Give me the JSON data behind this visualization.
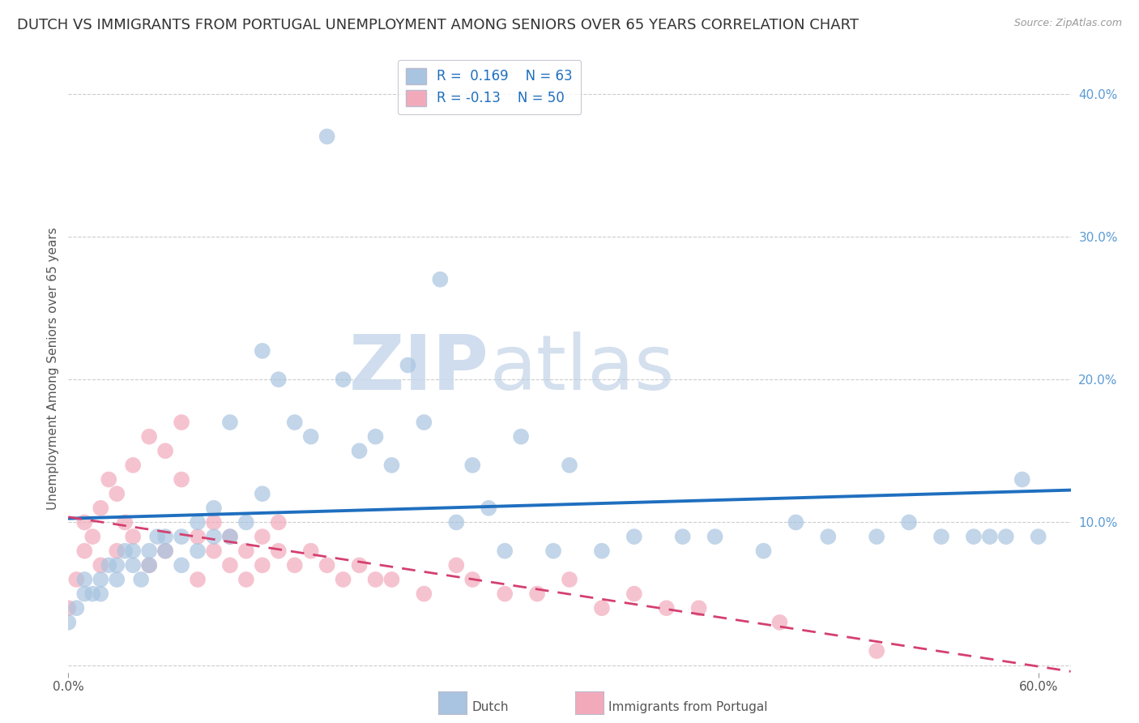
{
  "title": "DUTCH VS IMMIGRANTS FROM PORTUGAL UNEMPLOYMENT AMONG SENIORS OVER 65 YEARS CORRELATION CHART",
  "source": "Source: ZipAtlas.com",
  "ylabel": "Unemployment Among Seniors over 65 years",
  "xlim": [
    0.0,
    0.62
  ],
  "ylim": [
    -0.005,
    0.42
  ],
  "y_ticks_right": [
    0.0,
    0.1,
    0.2,
    0.3,
    0.4
  ],
  "dutch_R": 0.169,
  "dutch_N": 63,
  "portugal_R": -0.13,
  "portugal_N": 50,
  "dutch_color": "#a8c4e0",
  "dutch_line_color": "#1f6fbf",
  "portugal_color": "#f2aabb",
  "portugal_line_color": "#d44070",
  "dutch_scatter_x": [
    0.0,
    0.005,
    0.01,
    0.01,
    0.015,
    0.02,
    0.02,
    0.025,
    0.03,
    0.03,
    0.035,
    0.04,
    0.04,
    0.045,
    0.05,
    0.05,
    0.055,
    0.06,
    0.06,
    0.07,
    0.07,
    0.08,
    0.08,
    0.09,
    0.09,
    0.1,
    0.1,
    0.11,
    0.12,
    0.12,
    0.13,
    0.14,
    0.15,
    0.16,
    0.17,
    0.18,
    0.19,
    0.2,
    0.21,
    0.22,
    0.23,
    0.24,
    0.25,
    0.26,
    0.27,
    0.28,
    0.3,
    0.31,
    0.33,
    0.35,
    0.38,
    0.4,
    0.43,
    0.45,
    0.47,
    0.5,
    0.52,
    0.54,
    0.56,
    0.57,
    0.58,
    0.59,
    0.6
  ],
  "dutch_scatter_y": [
    0.03,
    0.04,
    0.05,
    0.06,
    0.05,
    0.06,
    0.05,
    0.07,
    0.06,
    0.07,
    0.08,
    0.07,
    0.08,
    0.06,
    0.08,
    0.07,
    0.09,
    0.08,
    0.09,
    0.07,
    0.09,
    0.08,
    0.1,
    0.09,
    0.11,
    0.09,
    0.17,
    0.1,
    0.12,
    0.22,
    0.2,
    0.17,
    0.16,
    0.37,
    0.2,
    0.15,
    0.16,
    0.14,
    0.21,
    0.17,
    0.27,
    0.1,
    0.14,
    0.11,
    0.08,
    0.16,
    0.08,
    0.14,
    0.08,
    0.09,
    0.09,
    0.09,
    0.08,
    0.1,
    0.09,
    0.09,
    0.1,
    0.09,
    0.09,
    0.09,
    0.09,
    0.13,
    0.09
  ],
  "portugal_scatter_x": [
    0.0,
    0.005,
    0.01,
    0.01,
    0.015,
    0.02,
    0.02,
    0.025,
    0.03,
    0.03,
    0.035,
    0.04,
    0.04,
    0.05,
    0.05,
    0.06,
    0.06,
    0.07,
    0.07,
    0.08,
    0.08,
    0.09,
    0.09,
    0.1,
    0.1,
    0.11,
    0.11,
    0.12,
    0.12,
    0.13,
    0.13,
    0.14,
    0.15,
    0.16,
    0.17,
    0.18,
    0.19,
    0.2,
    0.22,
    0.24,
    0.25,
    0.27,
    0.29,
    0.31,
    0.33,
    0.35,
    0.37,
    0.39,
    0.44,
    0.5
  ],
  "portugal_scatter_y": [
    0.04,
    0.06,
    0.08,
    0.1,
    0.09,
    0.11,
    0.07,
    0.13,
    0.12,
    0.08,
    0.1,
    0.14,
    0.09,
    0.16,
    0.07,
    0.15,
    0.08,
    0.13,
    0.17,
    0.09,
    0.06,
    0.08,
    0.1,
    0.07,
    0.09,
    0.08,
    0.06,
    0.07,
    0.09,
    0.08,
    0.1,
    0.07,
    0.08,
    0.07,
    0.06,
    0.07,
    0.06,
    0.06,
    0.05,
    0.07,
    0.06,
    0.05,
    0.05,
    0.06,
    0.04,
    0.05,
    0.04,
    0.04,
    0.03,
    0.01
  ],
  "watermark_zip": "ZIP",
  "watermark_atlas": "atlas",
  "background_color": "#ffffff",
  "grid_color": "#cccccc",
  "title_fontsize": 13,
  "legend_fontsize": 12,
  "axis_label_fontsize": 11,
  "tick_fontsize": 11
}
